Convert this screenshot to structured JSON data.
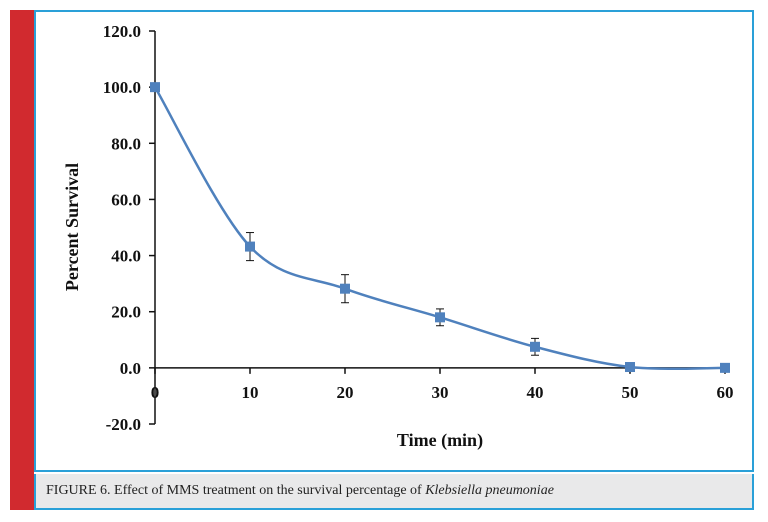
{
  "chart_data": {
    "type": "line",
    "xlabel": "Time (min)",
    "ylabel": "Percent Survival",
    "x": [
      0,
      10,
      20,
      30,
      40,
      50,
      60
    ],
    "series": [
      {
        "values": [
          100.0,
          43.2,
          28.2,
          18.0,
          7.5,
          0.3,
          0.0
        ],
        "errors": [
          0.8,
          5.0,
          5.0,
          3.0,
          3.0,
          0.5,
          0.3
        ]
      }
    ],
    "xlim": [
      0,
      60
    ],
    "ylim": [
      -20,
      120
    ],
    "xticks": [
      "0",
      "10",
      "20",
      "30",
      "40",
      "50",
      "60"
    ],
    "yticks": [
      "-20.0",
      "0.0",
      "20.0",
      "40.0",
      "60.0",
      "80.0",
      "100.0",
      "120.0"
    ],
    "grid": false,
    "line_color": "#4f81bd",
    "marker_color": "#4f81bd"
  },
  "caption": {
    "prefix": "FIGURE 6. Effect of MMS treatment on the survival percentage of ",
    "organism": "Klebsiella pneumoniae"
  }
}
